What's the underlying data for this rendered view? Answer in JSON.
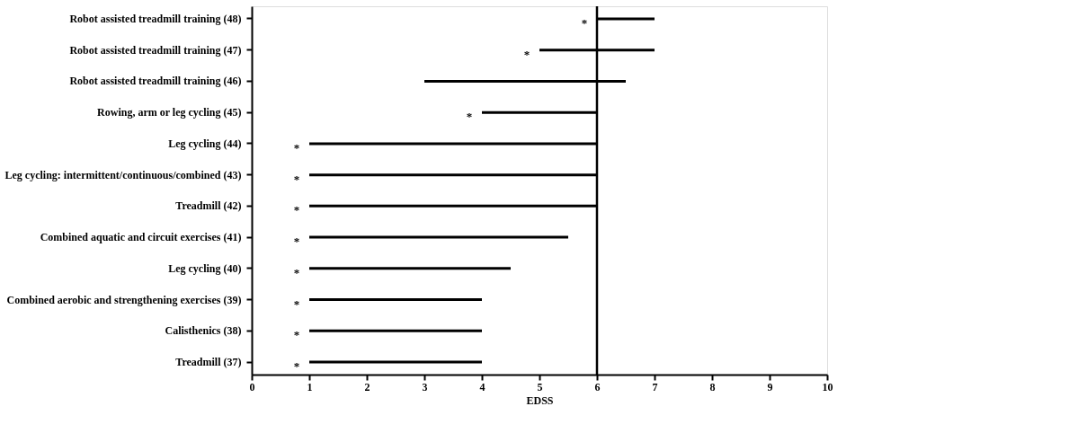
{
  "chart_data": {
    "type": "bar",
    "orientation": "horizontal",
    "xlabel": "EDSS",
    "categories": [
      "Robot assisted treadmill training (48)",
      "Robot assisted treadmill training (47)",
      "Robot assisted treadmill training (46)",
      "Rowing, arm or leg cycling (45)",
      "Leg cycling (44)",
      "Leg cycling: intermittent/continuous/combined (43)",
      "Treadmill (42)",
      "Combined aquatic and circuit exercises (41)",
      "Leg cycling (40)",
      "Combined aerobic and strengthening exercises (39)",
      "Calisthenics (38)",
      "Treadmill (37)"
    ],
    "base": [
      6,
      5,
      3,
      4,
      1,
      1,
      1,
      1,
      1,
      1,
      1,
      1
    ],
    "values": [
      1,
      2,
      3.5,
      2,
      5,
      5,
      5,
      4.5,
      3.5,
      3,
      3,
      3
    ],
    "color": "#000000",
    "xlim": [
      0,
      10
    ],
    "xticks": [
      0,
      1,
      2,
      3,
      4,
      5,
      6,
      7,
      8,
      9,
      10
    ],
    "grid": false,
    "ref_lines": [
      {
        "axis": "x",
        "value": 6,
        "color": "#000000"
      }
    ],
    "annotations": [
      {
        "text": "*",
        "x": 6,
        "y": "Robot assisted treadmill training (48)"
      },
      {
        "text": "*",
        "x": 5,
        "y": "Robot assisted treadmill training (47)"
      },
      {
        "text": "*",
        "x": 4,
        "y": "Rowing, arm or leg cycling (45)"
      },
      {
        "text": "*",
        "x": 1,
        "y": "Leg cycling (44)"
      },
      {
        "text": "*",
        "x": 1,
        "y": "Leg cycling: intermittent/continuous/combined (43)"
      },
      {
        "text": "*",
        "x": 1,
        "y": "Treadmill (42)"
      },
      {
        "text": "*",
        "x": 1,
        "y": "Combined aquatic and circuit exercises (41)"
      },
      {
        "text": "*",
        "x": 1,
        "y": "Leg cycling (40)"
      },
      {
        "text": "*",
        "x": 1,
        "y": "Combined aerobic and strengthening exercises (39)"
      },
      {
        "text": "*",
        "x": 1,
        "y": "Calisthenics (38)"
      },
      {
        "text": "*",
        "x": 1,
        "y": "Treadmill (37)"
      }
    ]
  }
}
